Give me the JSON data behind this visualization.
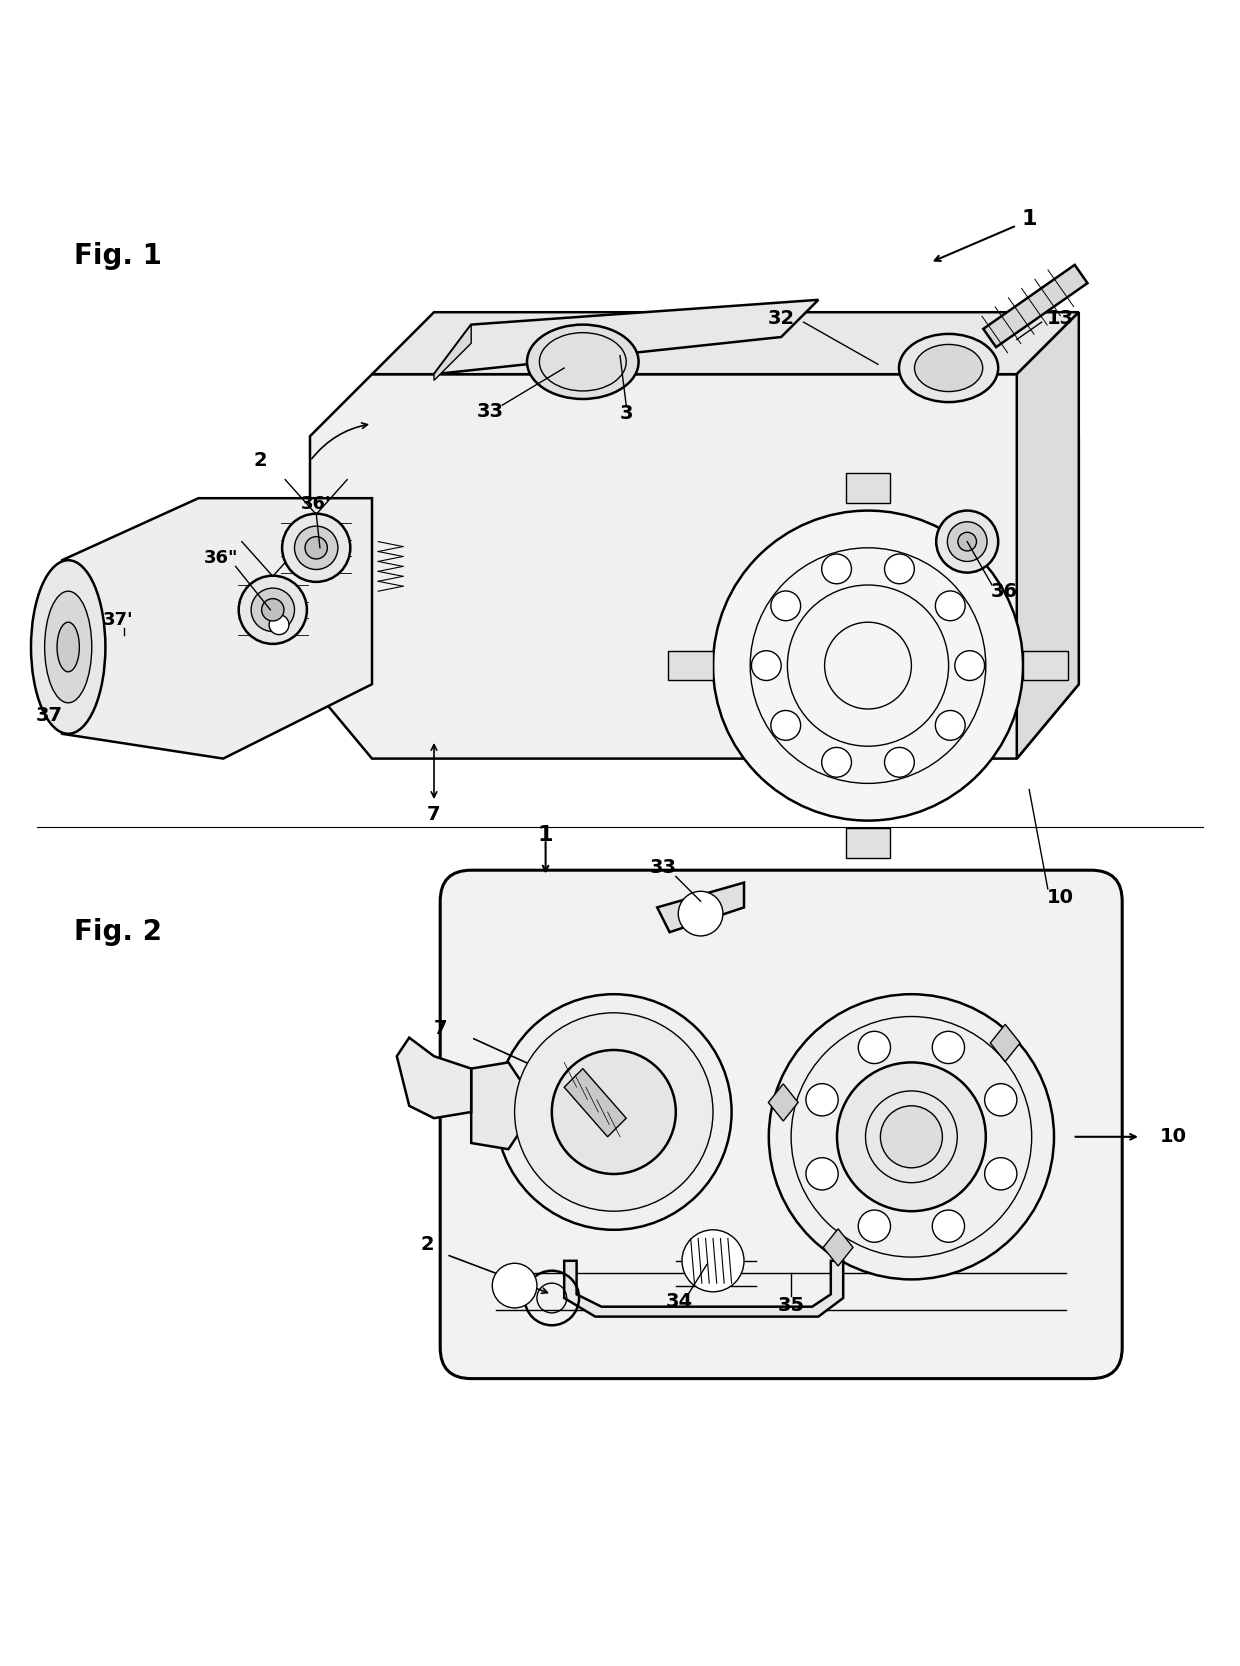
{
  "background_color": "#ffffff",
  "fig1_label": "Fig. 1",
  "fig2_label": "Fig. 2",
  "lw_main": 1.8,
  "lw_thin": 1.0,
  "lw_thick": 2.2
}
